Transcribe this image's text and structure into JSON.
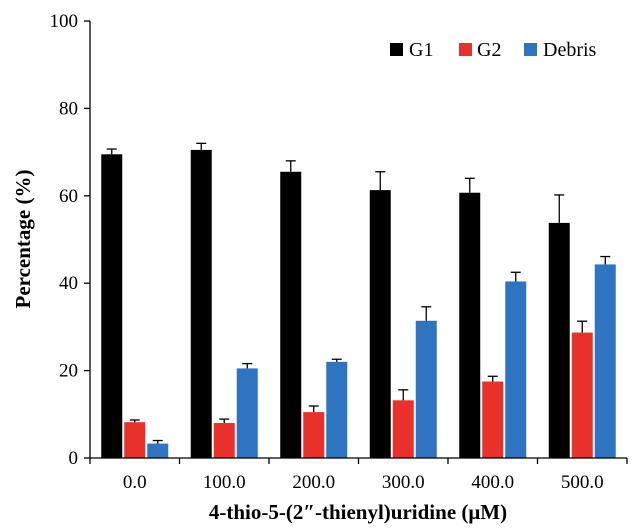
{
  "chart_data": {
    "type": "bar",
    "title": "",
    "xlabel": "4-thio-5-(2″-thienyl)uridine (μM)",
    "ylabel": "Percentage (%)",
    "ylim": [
      0,
      100
    ],
    "yticks": [
      0,
      20,
      40,
      60,
      80,
      100
    ],
    "categories": [
      "0.0",
      "100.0",
      "200.0",
      "300.0",
      "400.0",
      "500.0"
    ],
    "series": [
      {
        "name": "G1",
        "color": "#000000",
        "values": [
          69.5,
          70.5,
          65.5,
          61.3,
          60.7,
          53.8
        ],
        "errors": [
          1.2,
          1.5,
          2.5,
          4.2,
          3.3,
          6.4
        ]
      },
      {
        "name": "G2",
        "color": "#e8312a",
        "values": [
          8.2,
          8.0,
          10.5,
          13.2,
          17.5,
          28.7
        ],
        "errors": [
          0.5,
          0.9,
          1.4,
          2.4,
          1.2,
          2.6
        ]
      },
      {
        "name": "Debris",
        "color": "#2f74c0",
        "values": [
          3.3,
          20.5,
          22.0,
          31.4,
          40.4,
          44.3
        ],
        "errors": [
          0.7,
          1.1,
          0.6,
          3.2,
          2.1,
          1.8
        ]
      }
    ],
    "legend_position": "top-right",
    "grid": false
  }
}
